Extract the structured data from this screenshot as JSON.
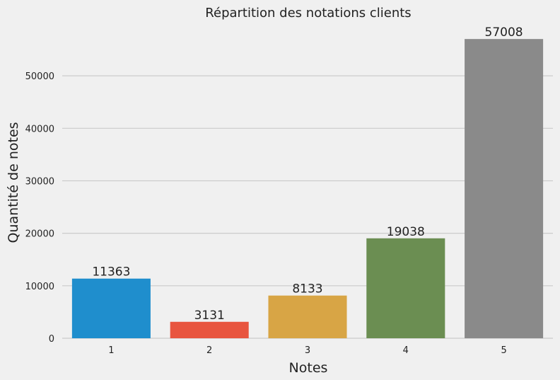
{
  "chart_data": {
    "type": "bar",
    "title": "Répartition des notations clients",
    "xlabel": "Notes",
    "ylabel": "Quantité de notes",
    "categories": [
      "1",
      "2",
      "3",
      "4",
      "5"
    ],
    "values": [
      11363,
      3131,
      8133,
      19038,
      57008
    ],
    "data_labels": [
      "11363",
      "3131",
      "8133",
      "19038",
      "57008"
    ],
    "ylim": [
      0,
      59858
    ],
    "yticks": [
      0,
      10000,
      20000,
      30000,
      40000,
      50000
    ],
    "ytick_labels": [
      "0",
      "10000",
      "20000",
      "30000",
      "40000",
      "50000"
    ],
    "grid": true,
    "colors": [
      "#1f8ecd",
      "#e8553f",
      "#d8a545",
      "#6b8e52",
      "#8a8a8a"
    ],
    "background": "#f0f0f0"
  }
}
